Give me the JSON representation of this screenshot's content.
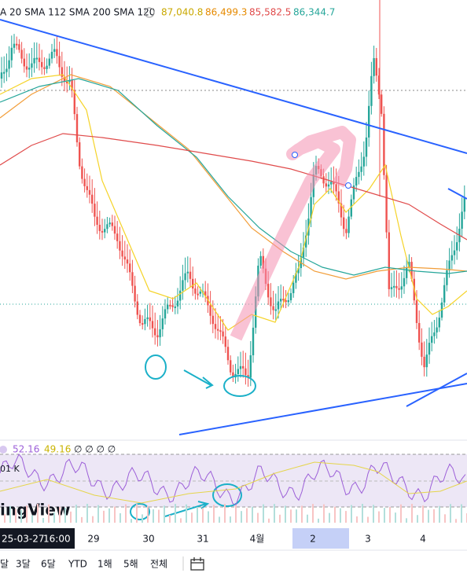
{
  "legend": {
    "indicators": "A 20 SMA 112 SMA 200 SMA 120",
    "values": [
      "87,040.8",
      "86,499.3",
      "85,582.5",
      "86,344.7"
    ]
  },
  "rsi": {
    "values": [
      "52.16",
      "49.16"
    ],
    "extra": "∅ ∅ ∅ ∅",
    "volume_label": "01 K"
  },
  "watermark": "ingView",
  "time_axis": {
    "date": "25-03-27",
    "time": "16:00",
    "labels": [
      "29",
      "30",
      "31",
      "4월",
      "2",
      "3",
      "4"
    ]
  },
  "toolbar": {
    "ranges": [
      "달",
      "3달",
      "6달",
      "YTD",
      "1해",
      "5해",
      "전체"
    ]
  }
}
